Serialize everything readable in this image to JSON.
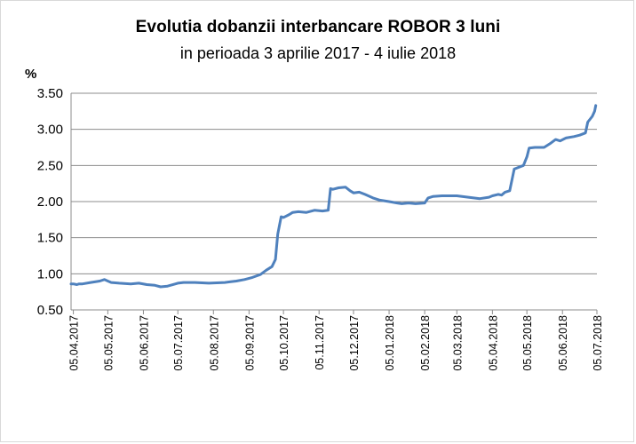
{
  "chart_data": {
    "type": "line",
    "title": "Evolutia dobanzii interbancare ROBOR 3 luni",
    "subtitle": "in perioada 3 aprilie 2017  -  4 iulie 2018",
    "ylabel": "%",
    "ylim": [
      0.5,
      3.5
    ],
    "yticks": [
      "0.50",
      "1.00",
      "1.50",
      "2.00",
      "2.50",
      "3.00",
      "3.50"
    ],
    "xlim": [
      "2017-04-03",
      "2018-07-05"
    ],
    "xticks": [
      "05.04.2017",
      "05.05.2017",
      "05.06.2017",
      "05.07.2017",
      "05.08.2017",
      "05.09.2017",
      "05.10.2017",
      "05.11.2017",
      "05.12.2017",
      "05.01.2018",
      "05.02.2018",
      "05.03.2018",
      "05.04.2018",
      "05.05.2018",
      "05.06.2018",
      "05.07.2018"
    ],
    "grid": "horizontal",
    "legend": "none",
    "line_color": "#4f81bd",
    "series": [
      {
        "x": [
          "2017-04-03",
          "2017-04-05",
          "2017-04-08",
          "2017-04-10",
          "2017-04-13",
          "2017-04-20",
          "2017-04-28",
          "2017-05-02",
          "2017-05-05",
          "2017-05-08",
          "2017-05-15",
          "2017-05-25",
          "2017-06-01",
          "2017-06-08",
          "2017-06-15",
          "2017-06-20",
          "2017-06-26",
          "2017-07-03",
          "2017-07-05",
          "2017-07-10",
          "2017-07-20",
          "2017-08-01",
          "2017-08-15",
          "2017-08-20",
          "2017-08-25",
          "2017-09-01",
          "2017-09-08",
          "2017-09-15",
          "2017-09-20",
          "2017-09-25",
          "2017-09-28",
          "2017-09-30",
          "2017-10-03",
          "2017-10-05",
          "2017-10-10",
          "2017-10-13",
          "2017-10-18",
          "2017-10-25",
          "2017-11-01",
          "2017-11-08",
          "2017-11-13",
          "2017-11-15",
          "2017-11-17",
          "2017-11-22",
          "2017-11-28",
          "2017-12-02",
          "2017-12-05",
          "2017-12-10",
          "2017-12-15",
          "2017-12-22",
          "2017-12-28",
          "2018-01-05",
          "2018-01-12",
          "2018-01-16",
          "2018-01-22",
          "2018-01-28",
          "2018-02-05",
          "2018-02-08",
          "2018-02-12",
          "2018-02-20",
          "2018-03-01",
          "2018-03-05",
          "2018-03-15",
          "2018-03-25",
          "2018-04-02",
          "2018-04-05",
          "2018-04-10",
          "2018-04-13",
          "2018-04-16",
          "2018-04-20",
          "2018-04-24",
          "2018-05-02",
          "2018-05-05",
          "2018-05-07",
          "2018-05-12",
          "2018-05-20",
          "2018-05-25",
          "2018-05-30",
          "2018-06-03",
          "2018-06-08",
          "2018-06-15",
          "2018-06-20",
          "2018-06-25",
          "2018-06-27",
          "2018-07-01",
          "2018-07-03",
          "2018-07-04"
        ],
        "values": [
          0.86,
          0.86,
          0.85,
          0.86,
          0.86,
          0.88,
          0.9,
          0.92,
          0.9,
          0.88,
          0.87,
          0.86,
          0.87,
          0.85,
          0.84,
          0.82,
          0.83,
          0.86,
          0.87,
          0.88,
          0.88,
          0.87,
          0.88,
          0.89,
          0.9,
          0.92,
          0.95,
          0.99,
          1.05,
          1.1,
          1.2,
          1.55,
          1.79,
          1.78,
          1.82,
          1.85,
          1.86,
          1.85,
          1.88,
          1.87,
          1.88,
          2.18,
          2.17,
          2.19,
          2.2,
          2.15,
          2.12,
          2.13,
          2.1,
          2.05,
          2.02,
          2.0,
          1.98,
          1.97,
          1.98,
          1.97,
          1.98,
          2.05,
          2.07,
          2.08,
          2.08,
          2.08,
          2.06,
          2.04,
          2.06,
          2.08,
          2.1,
          2.09,
          2.13,
          2.15,
          2.45,
          2.5,
          2.62,
          2.74,
          2.75,
          2.75,
          2.8,
          2.86,
          2.84,
          2.88,
          2.9,
          2.92,
          2.95,
          3.1,
          3.18,
          3.25,
          3.33
        ]
      }
    ]
  }
}
